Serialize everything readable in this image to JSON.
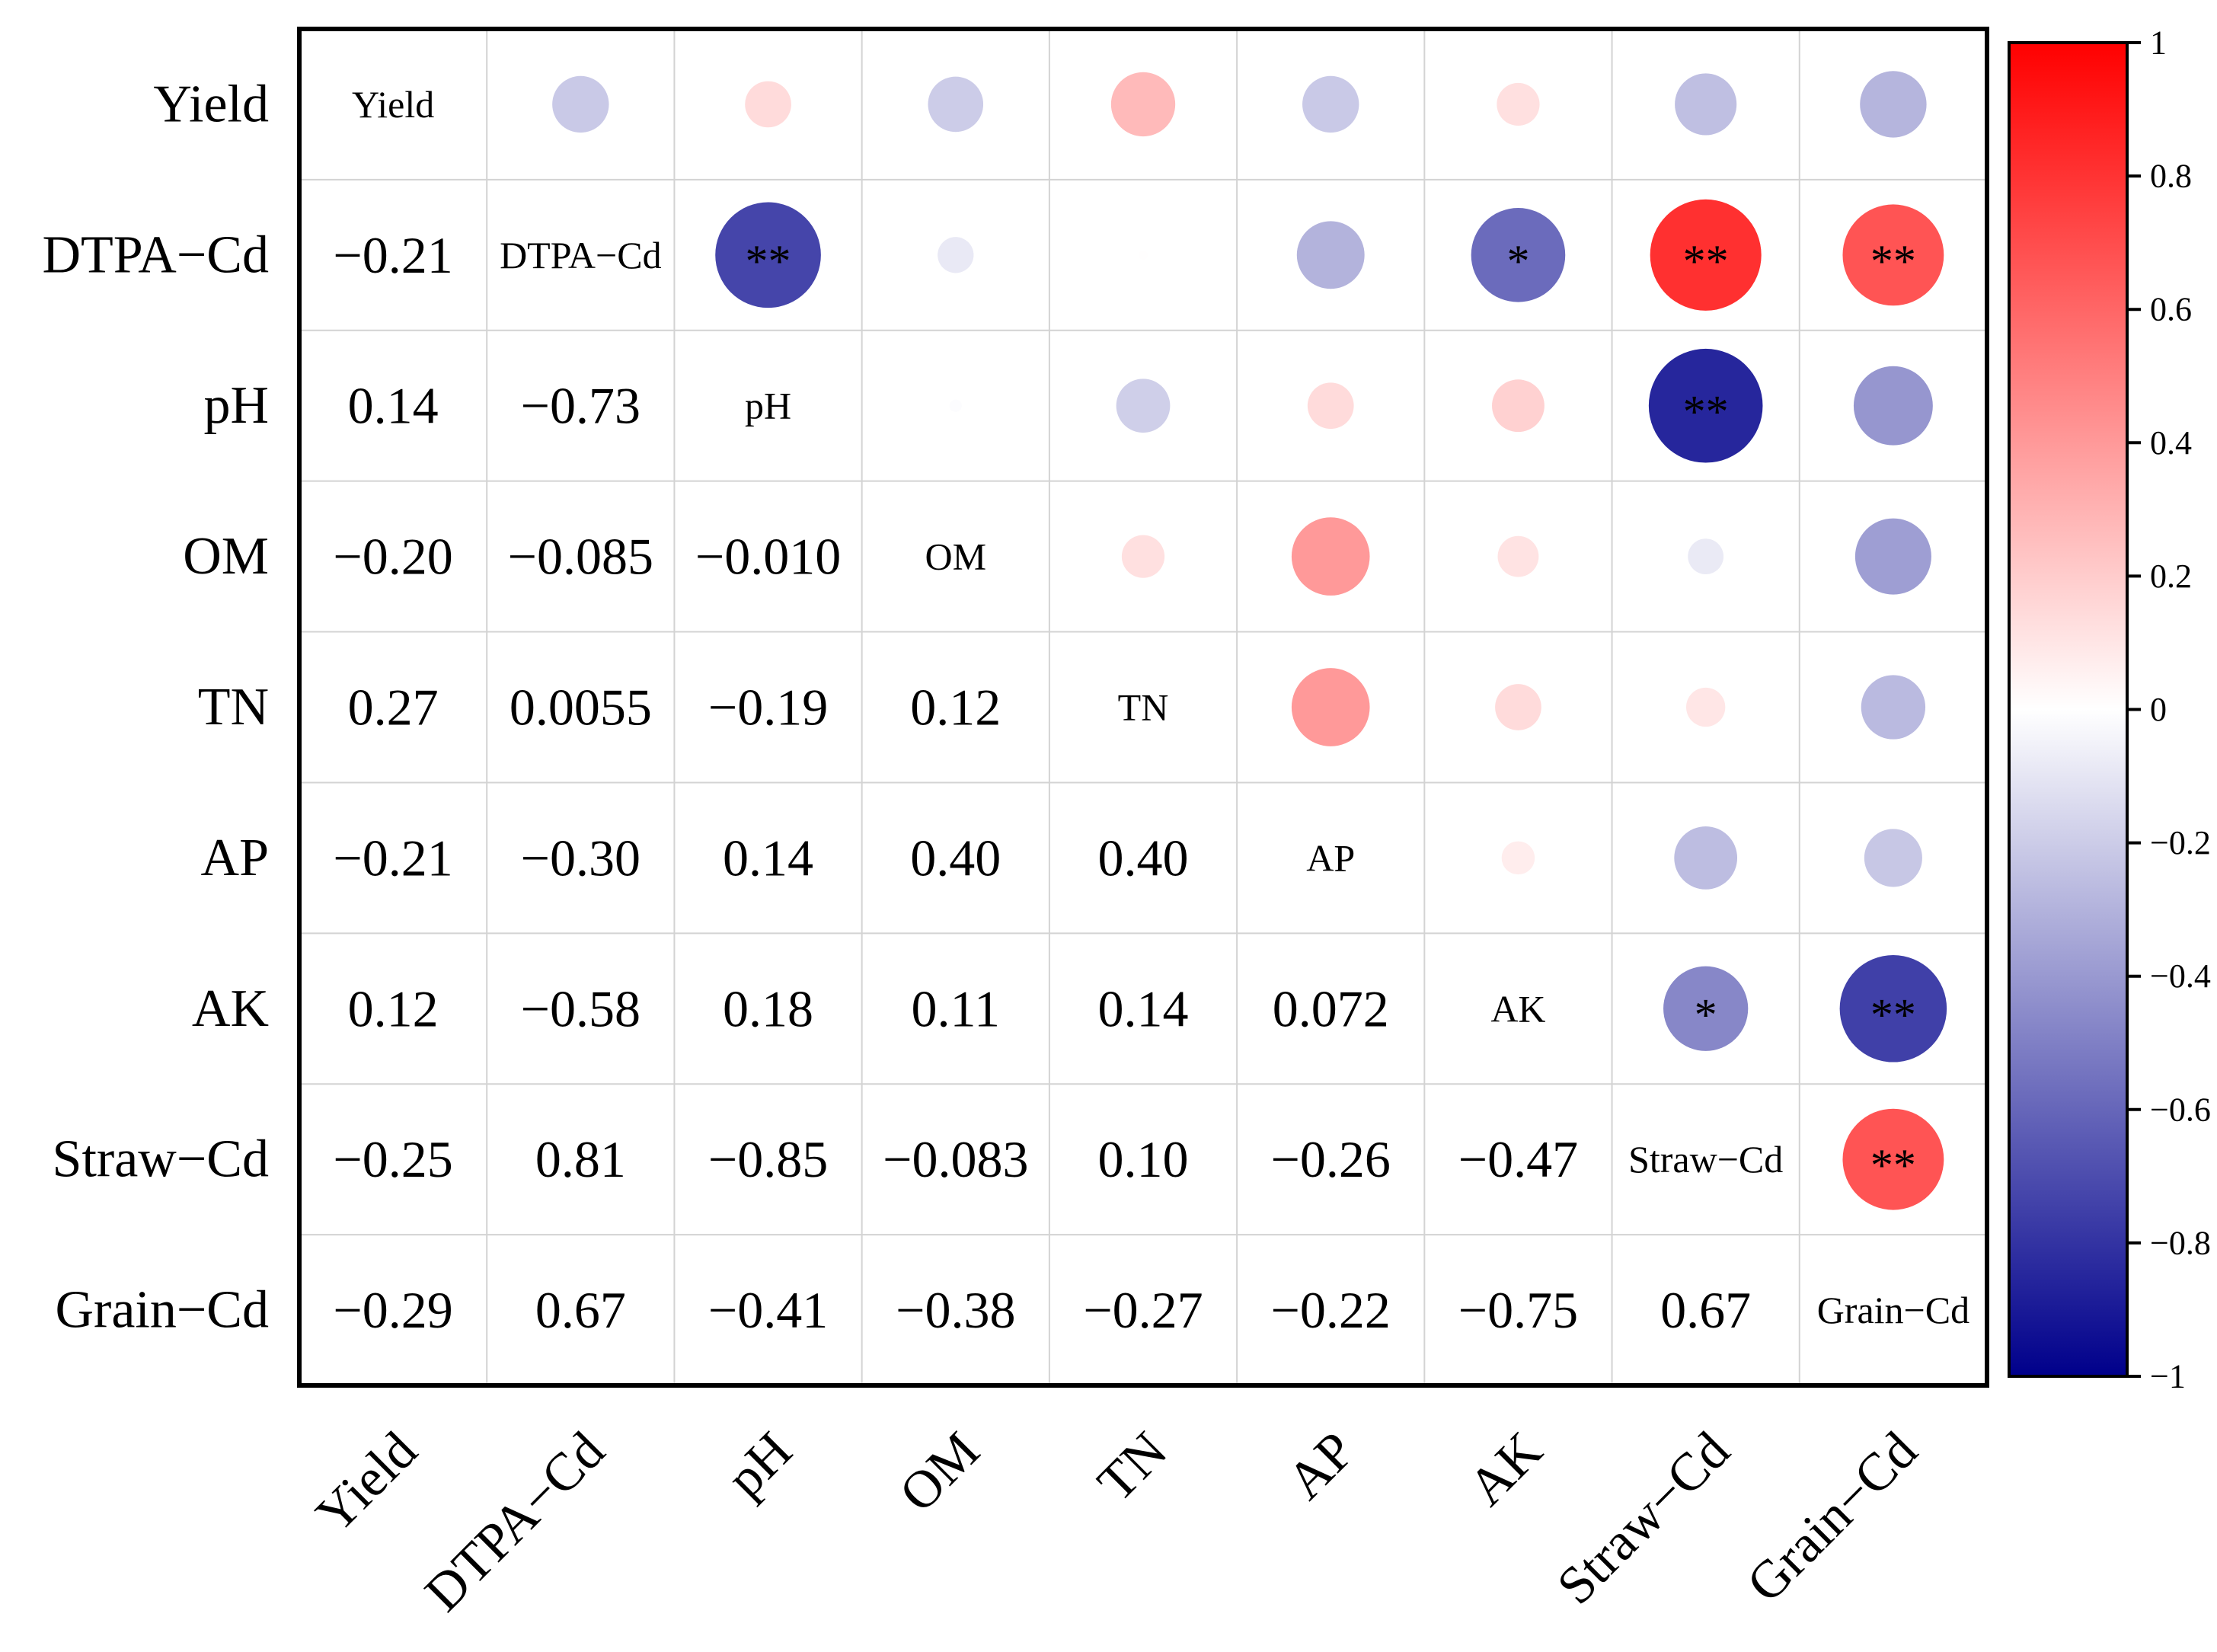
{
  "chart_data": {
    "type": "heatmap",
    "variables": [
      "Yield",
      "DTPA−Cd",
      "pH",
      "OM",
      "TN",
      "AP",
      "AK",
      "Straw−Cd",
      "Grain−Cd"
    ],
    "matrix": [
      [
        1,
        -0.21,
        0.14,
        -0.2,
        0.27,
        -0.21,
        0.12,
        -0.25,
        -0.29
      ],
      [
        -0.21,
        1,
        -0.73,
        -0.085,
        0.0055,
        -0.3,
        -0.58,
        0.81,
        0.67
      ],
      [
        0.14,
        -0.73,
        1,
        -0.01,
        -0.19,
        0.14,
        0.18,
        -0.85,
        -0.41
      ],
      [
        -0.2,
        -0.085,
        -0.01,
        1,
        0.12,
        0.4,
        0.11,
        -0.083,
        -0.38
      ],
      [
        0.27,
        0.0055,
        -0.19,
        0.12,
        1,
        0.4,
        0.14,
        0.1,
        -0.27
      ],
      [
        -0.21,
        -0.3,
        0.14,
        0.4,
        0.4,
        1,
        0.072,
        -0.26,
        -0.22
      ],
      [
        0.12,
        -0.58,
        0.18,
        0.11,
        0.14,
        0.072,
        1,
        -0.47,
        -0.75
      ],
      [
        -0.25,
        0.81,
        -0.85,
        -0.083,
        0.1,
        -0.26,
        -0.47,
        1,
        0.67
      ],
      [
        -0.29,
        0.67,
        -0.41,
        -0.38,
        -0.27,
        -0.22,
        -0.75,
        0.67,
        1
      ]
    ],
    "lower_labels": [
      [],
      [
        "−0.21"
      ],
      [
        "0.14",
        "−0.73"
      ],
      [
        "−0.20",
        "−0.085",
        "−0.010"
      ],
      [
        "0.27",
        "0.0055",
        "−0.19",
        "0.12"
      ],
      [
        "−0.21",
        "−0.30",
        "0.14",
        "0.40",
        "0.40"
      ],
      [
        "0.12",
        "−0.58",
        "0.18",
        "0.11",
        "0.14",
        "0.072"
      ],
      [
        "−0.25",
        "0.81",
        "−0.85",
        "−0.083",
        "0.10",
        "−0.26",
        "−0.47"
      ],
      [
        "−0.29",
        "0.67",
        "−0.41",
        "−0.38",
        "−0.27",
        "−0.22",
        "−0.75",
        "0.67"
      ]
    ],
    "significance": [
      {
        "row": 1,
        "col": 2,
        "mark": "**"
      },
      {
        "row": 1,
        "col": 6,
        "mark": "*"
      },
      {
        "row": 1,
        "col": 7,
        "mark": "**"
      },
      {
        "row": 1,
        "col": 8,
        "mark": "**"
      },
      {
        "row": 2,
        "col": 7,
        "mark": "**"
      },
      {
        "row": 6,
        "col": 7,
        "mark": "*"
      },
      {
        "row": 6,
        "col": 8,
        "mark": "**"
      },
      {
        "row": 7,
        "col": 8,
        "mark": "**"
      }
    ],
    "upper_triangle": "circles",
    "lower_triangle": "values",
    "diagonal": "variable names",
    "colorbar": {
      "range": [
        -1,
        1
      ],
      "ticks": [
        "1",
        "0.8",
        "0.6",
        "0.4",
        "0.2",
        "0",
        "−0.2",
        "−0.4",
        "−0.6",
        "−0.8",
        "−1"
      ],
      "colors": {
        "low": "#00008b",
        "mid": "#ffffff",
        "high": "#ff0000"
      }
    },
    "grid": true,
    "x_tick_rotation": "45 degrees"
  }
}
